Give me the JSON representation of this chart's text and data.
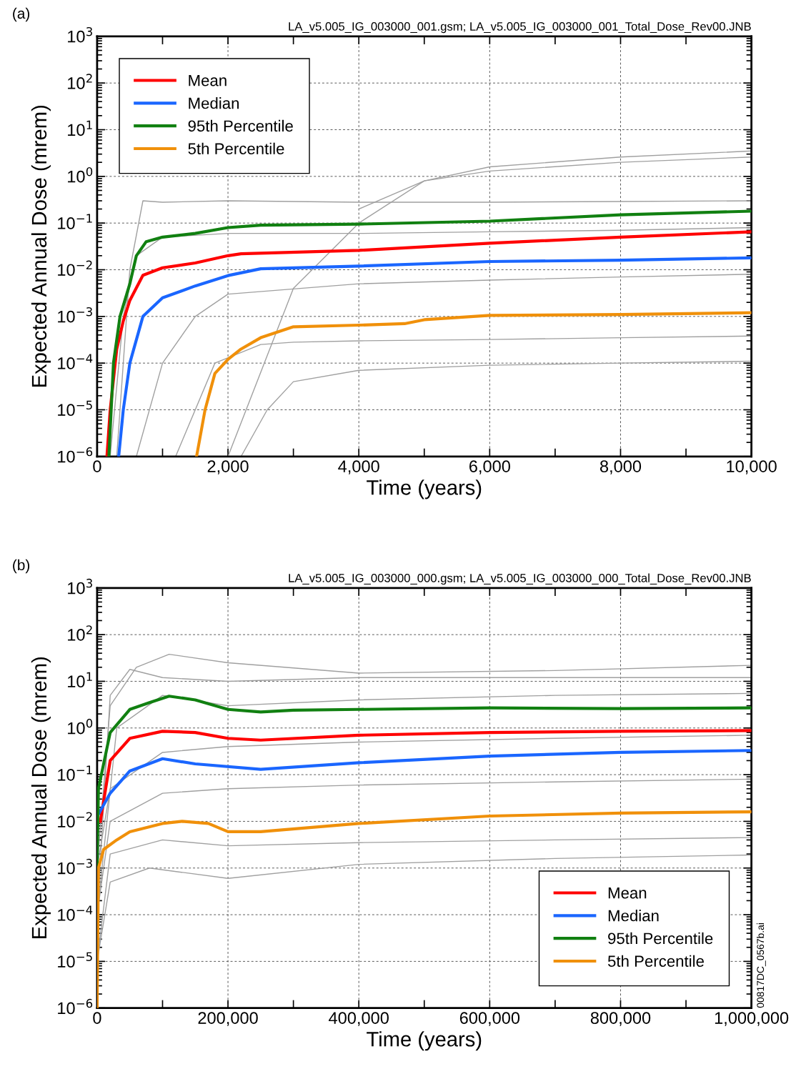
{
  "chart_data": [
    {
      "type": "line",
      "xlabel": "Time (years)",
      "ylabel": "Expected Annual Dose (mrem)",
      "log": "y",
      "grid": true,
      "legend": "top left",
      "annotations": [
        "(a)",
        "LA_v5.005_IG_003000_001.gsm; LA_v5.005_IG_003000_001_Total_Dose_Rev00.JNB"
      ],
      "xlim": [
        0,
        10000
      ],
      "xticks": [
        0,
        {
          "value": 1000,
          "label": null
        },
        {
          "value": 2000,
          "label": "2,000"
        },
        {
          "value": 3000,
          "label": null
        },
        {
          "value": 4000,
          "label": "4,000"
        },
        {
          "value": 5000,
          "label": null
        },
        {
          "value": 6000,
          "label": "6,000"
        },
        {
          "value": 7000,
          "label": null
        },
        {
          "value": 8000,
          "label": "8,000"
        },
        {
          "value": 9000,
          "label": null
        },
        {
          "value": 10000,
          "label": "10,000"
        }
      ],
      "ylim": [
        1e-06,
        1000
      ],
      "yticks": [
        {
          "value": 1e-06,
          "label": "10$^{−6}$"
        },
        {
          "value": 1e-05,
          "label": "10$^{−5}$"
        },
        {
          "value": 0.0001,
          "label": "10$^{−4}$"
        },
        {
          "value": 0.001,
          "label": "10$^{−3}$"
        },
        {
          "value": 0.01,
          "label": "10$^{−2}$"
        },
        {
          "value": 0.1,
          "label": "10$^{−1}$"
        },
        {
          "value": 1,
          "label": "10$^{0}$"
        },
        {
          "value": 10,
          "label": "10$^{1}$"
        },
        {
          "value": 100,
          "label": "10$^{2}$"
        },
        {
          "value": 1000,
          "label": "10$^{3}$"
        }
      ],
      "series": [
        {
          "color": "#a0a0a0",
          "x": [
            2000,
            3000,
            4000,
            5000,
            6000,
            8000,
            10000
          ],
          "values": [
            1e-06,
            0.004,
            0.1,
            0.8,
            1.6,
            2.6,
            3.5
          ]
        },
        {
          "color": "#a0a0a0",
          "x": [
            300,
            500,
            700,
            1000,
            2000,
            4000,
            6000,
            8000,
            10000
          ],
          "values": [
            1e-06,
            0.01,
            0.3,
            0.28,
            0.3,
            0.28,
            0.28,
            0.29,
            0.3
          ]
        },
        {
          "color": "#a0a0a0",
          "x": [
            4000,
            5000,
            6000,
            8000,
            10000
          ],
          "values": [
            0.2,
            0.8,
            1.3,
            2,
            2.6
          ]
        },
        {
          "color": "#a0a0a0",
          "x": [
            200,
            400,
            600,
            1000,
            2000,
            4000,
            6000,
            8000,
            10000
          ],
          "values": [
            1e-06,
            0.001,
            0.02,
            0.05,
            0.06,
            0.06,
            0.065,
            0.07,
            0.08
          ]
        },
        {
          "color": "#a0a0a0",
          "x": [
            600,
            1000,
            1500,
            2000,
            4000,
            6000,
            8000,
            10000
          ],
          "values": [
            1e-06,
            0.0001,
            0.001,
            0.003,
            0.005,
            0.006,
            0.007,
            0.008
          ]
        },
        {
          "color": "#a0a0a0",
          "x": [
            1200,
            1800,
            2500,
            3000,
            4000,
            6000,
            8000,
            10000
          ],
          "values": [
            1e-06,
            0.0001,
            0.00025,
            0.00028,
            0.0003,
            0.00032,
            0.00035,
            0.00038
          ]
        },
        {
          "color": "#a0a0a0",
          "x": [
            2200,
            2600,
            3000,
            4000,
            6000,
            8000,
            10000
          ],
          "values": [
            1e-06,
            1e-05,
            4e-05,
            7e-05,
            9e-05,
            0.0001,
            0.00011
          ]
        },
        {
          "name": "Mean",
          "color": "#ff0000",
          "x": [
            150,
            200,
            300,
            400,
            500,
            700,
            1000,
            1500,
            2000,
            2200,
            4000,
            6000,
            8000,
            10000
          ],
          "values": [
            1e-06,
            1e-05,
            0.0002,
            0.0008,
            0.0022,
            0.0076,
            0.011,
            0.014,
            0.02,
            0.022,
            0.026,
            0.037,
            0.05,
            0.065
          ]
        },
        {
          "name": "Median",
          "color": "#1a66ff",
          "x": [
            330,
            400,
            500,
            700,
            1000,
            1500,
            2000,
            2500,
            4000,
            6000,
            8000,
            10000
          ],
          "values": [
            1e-06,
            1e-05,
            0.0001,
            0.001,
            0.0025,
            0.0045,
            0.0075,
            0.0105,
            0.012,
            0.015,
            0.016,
            0.018
          ]
        },
        {
          "name": "95th Percentile",
          "color": "#118011",
          "x": [
            180,
            250,
            350,
            500,
            600,
            750,
            1000,
            1500,
            2000,
            2500,
            4000,
            6000,
            8000,
            10000
          ],
          "values": [
            1e-06,
            0.0001,
            0.001,
            0.005,
            0.02,
            0.04,
            0.05,
            0.06,
            0.08,
            0.09,
            0.095,
            0.11,
            0.15,
            0.18
          ]
        },
        {
          "name": "5th Percentile",
          "color": "#f0900a",
          "x": [
            1520,
            1650,
            1800,
            2000,
            2200,
            2500,
            3000,
            4000,
            4700,
            5000,
            6000,
            8000,
            10000
          ],
          "values": [
            1e-06,
            1e-05,
            6e-05,
            0.00012,
            0.0002,
            0.00035,
            0.0006,
            0.00065,
            0.0007,
            0.00085,
            0.00105,
            0.0011,
            0.0012
          ]
        }
      ]
    },
    {
      "type": "line",
      "xlabel": "Time (years)",
      "ylabel": "Expected Annual Dose (mrem)",
      "log": "y",
      "grid": true,
      "legend": "bottom right",
      "annotations": [
        "(b)",
        "LA_v5.005_IG_003000_000.gsm; LA_v5.005_IG_003000_000_Total_Dose_Rev00.JNB",
        "00817DC_0567b.ai"
      ],
      "xlim": [
        0,
        1000000
      ],
      "xticks": [
        0,
        {
          "value": 100000,
          "label": null
        },
        {
          "value": 200000,
          "label": "200,000"
        },
        {
          "value": 300000,
          "label": null
        },
        {
          "value": 400000,
          "label": "400,000"
        },
        {
          "value": 500000,
          "label": null
        },
        {
          "value": 600000,
          "label": "600,000"
        },
        {
          "value": 700000,
          "label": null
        },
        {
          "value": 800000,
          "label": "800,000"
        },
        {
          "value": 900000,
          "label": null
        },
        {
          "value": 1000000,
          "label": "1,000,000"
        }
      ],
      "ylim": [
        1e-06,
        1000
      ],
      "yticks": [
        {
          "value": 1e-06,
          "label": "10$^{−6}$"
        },
        {
          "value": 1e-05,
          "label": "10$^{−5}$"
        },
        {
          "value": 0.0001,
          "label": "10$^{−4}$"
        },
        {
          "value": 0.001,
          "label": "10$^{−3}$"
        },
        {
          "value": 0.01,
          "label": "10$^{−2}$"
        },
        {
          "value": 0.1,
          "label": "10$^{−1}$"
        },
        {
          "value": 1,
          "label": "10$^{0}$"
        },
        {
          "value": 10,
          "label": "10$^{1}$"
        },
        {
          "value": 100,
          "label": "10$^{2}$"
        },
        {
          "value": 1000,
          "label": "10$^{3}$"
        }
      ],
      "series": [
        {
          "color": "#a0a0a0",
          "x": [
            0,
            20000,
            60000,
            110000,
            200000,
            400000,
            700000,
            1000000
          ],
          "values": [
            0.001,
            3,
            20,
            38,
            25,
            15,
            17,
            22
          ]
        },
        {
          "color": "#a0a0a0",
          "x": [
            0,
            20000,
            50000,
            100000,
            200000,
            400000,
            700000,
            1000000
          ],
          "values": [
            0.0001,
            5,
            18,
            12,
            10,
            12,
            12,
            12
          ]
        },
        {
          "color": "#a0a0a0",
          "x": [
            0,
            30000,
            100000,
            200000,
            400000,
            700000,
            1000000
          ],
          "values": [
            0.0001,
            1,
            5,
            3,
            4,
            5,
            5.5
          ]
        },
        {
          "color": "#a0a0a0",
          "x": [
            0,
            20000,
            100000,
            200000,
            400000,
            700000,
            1000000
          ],
          "values": [
            0.001,
            0.05,
            0.3,
            0.4,
            0.5,
            0.6,
            0.7
          ]
        },
        {
          "color": "#a0a0a0",
          "x": [
            0,
            20000,
            100000,
            200000,
            400000,
            700000,
            1000000
          ],
          "values": [
            0.0001,
            0.01,
            0.04,
            0.05,
            0.06,
            0.07,
            0.08
          ]
        },
        {
          "color": "#a0a0a0",
          "x": [
            0,
            20000,
            100000,
            200000,
            400000,
            700000,
            1000000
          ],
          "values": [
            1e-05,
            0.002,
            0.004,
            0.003,
            0.0035,
            0.004,
            0.0045
          ]
        },
        {
          "color": "#a0a0a0",
          "x": [
            0,
            20000,
            80000,
            200000,
            400000,
            700000,
            1000000
          ],
          "values": [
            1e-05,
            0.0005,
            0.001,
            0.0006,
            0.0012,
            0.0016,
            0.0019
          ]
        },
        {
          "name": "Mean",
          "color": "#ff0000",
          "x": [
            5000,
            20000,
            50000,
            100000,
            150000,
            200000,
            250000,
            400000,
            600000,
            800000,
            1000000
          ],
          "values": [
            0.01,
            0.2,
            0.6,
            0.85,
            0.8,
            0.6,
            0.55,
            0.7,
            0.8,
            0.85,
            0.88
          ]
        },
        {
          "name": "Median",
          "color": "#1a66ff",
          "x": [
            3000,
            20000,
            50000,
            100000,
            150000,
            250000,
            400000,
            600000,
            800000,
            1000000
          ],
          "values": [
            0.015,
            0.04,
            0.12,
            0.22,
            0.17,
            0.13,
            0.18,
            0.25,
            0.3,
            0.33
          ]
        },
        {
          "name": "95th Percentile",
          "color": "#118011",
          "x": [
            0,
            2000,
            20000,
            50000,
            80000,
            110000,
            150000,
            200000,
            250000,
            300000,
            400000,
            600000,
            800000,
            1000000
          ],
          "values": [
            0.001,
            0.05,
            0.8,
            2.5,
            3.5,
            4.8,
            4,
            2.5,
            2.2,
            2.4,
            2.5,
            2.7,
            2.6,
            2.7
          ]
        },
        {
          "name": "5th Percentile",
          "color": "#f0900a",
          "x": [
            0,
            2000,
            10000,
            30000,
            50000,
            100000,
            130000,
            170000,
            200000,
            250000,
            400000,
            600000,
            800000,
            1000000
          ],
          "values": [
            1e-06,
            0.001,
            0.0025,
            0.004,
            0.006,
            0.009,
            0.01,
            0.009,
            0.006,
            0.006,
            0.009,
            0.013,
            0.015,
            0.016
          ]
        }
      ]
    }
  ]
}
